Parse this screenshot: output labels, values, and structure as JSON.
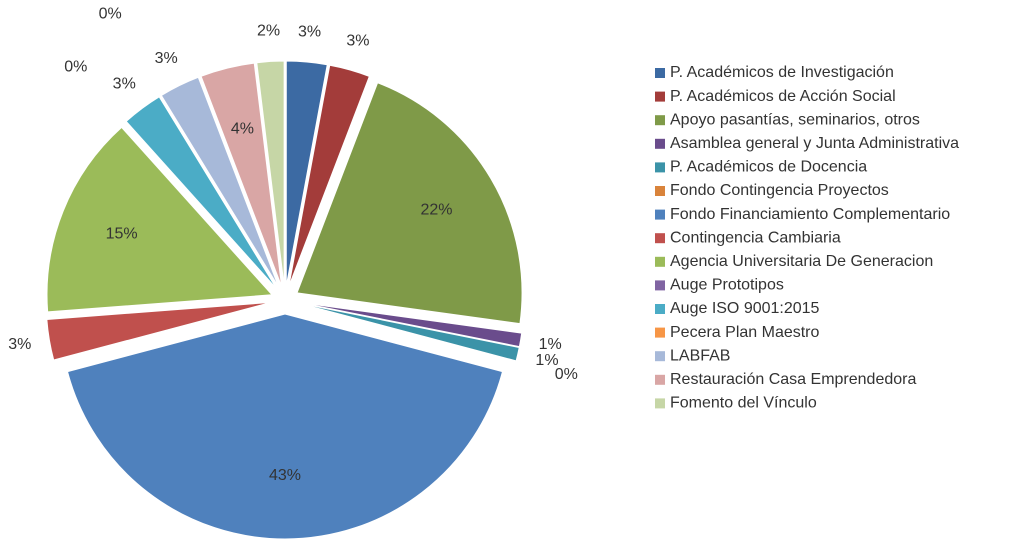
{
  "chart_data": {
    "type": "pie",
    "categories": [
      "P. Académicos de Investigación",
      "P. Académicos de Acción Social",
      "Apoyo pasantías, seminarios, otros",
      "Asamblea general y Junta Administrativa",
      "P. Académicos de Docencia",
      "Fondo Contingencia Proyectos",
      "Fondo Financiamiento Complementario",
      "Contingencia Cambiaria",
      "Agencia Universitaria De Generacion",
      "Auge Prototipos",
      "Auge ISO 9001:2015",
      "Pecera Plan Maestro",
      "LABFAB",
      "Restauración Casa Emprendedora",
      "Fomento del Vínculo"
    ],
    "values": [
      3,
      3,
      22,
      1,
      1,
      0,
      43,
      3,
      15,
      0,
      3,
      0,
      3,
      4,
      2
    ],
    "value_labels": [
      "3%",
      "3%",
      "22%",
      "1%",
      "1%",
      "0%",
      "43%",
      "3%",
      "15%",
      "0%",
      "3%",
      "0%",
      "3%",
      "4%",
      "2%"
    ],
    "colors": [
      "#3c6aa3",
      "#a33c3a",
      "#7f9a48",
      "#6a4c8c",
      "#3b93a8",
      "#d9833b",
      "#4f81bd",
      "#c0504d",
      "#9bbb59",
      "#8064a2",
      "#4bacc6",
      "#f79646",
      "#a7b9d9",
      "#d9a6a5",
      "#c6d6a6"
    ],
    "legend": "right"
  }
}
